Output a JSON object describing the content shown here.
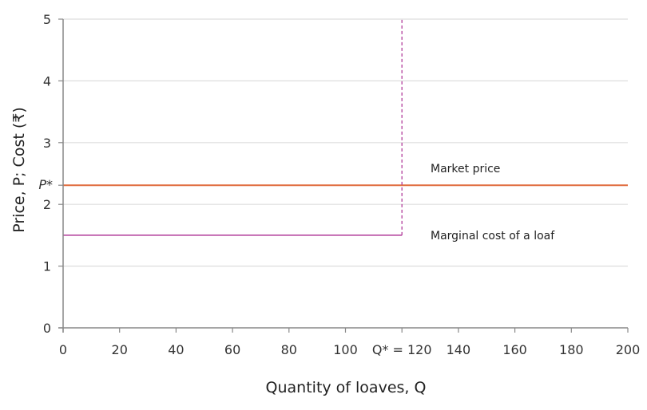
{
  "chart_data": {
    "type": "line",
    "title": "",
    "xlabel": "Quantity of loaves, Q",
    "ylabel": "Price, P; Cost (₹)",
    "xlim": [
      0,
      200
    ],
    "ylim": [
      0,
      5
    ],
    "grid": "horizontal",
    "x_ticks": [
      0,
      20,
      40,
      60,
      80,
      100,
      120,
      140,
      160,
      180,
      200
    ],
    "x_tick_labels": [
      "0",
      "20",
      "40",
      "60",
      "80",
      "100",
      "Q* = 120",
      "140",
      "160",
      "180",
      "200"
    ],
    "y_ticks": [
      0,
      1,
      2,
      3,
      4,
      5
    ],
    "y_tick_labels": [
      "0",
      "1",
      "2",
      "3",
      "4",
      "5"
    ],
    "extra_y_label": {
      "text": "P*",
      "value": 2.31
    },
    "series": [
      {
        "name": "Market price",
        "color": "#e06b3d",
        "style": "solid",
        "x": [
          0,
          200
        ],
        "y": [
          2.31,
          2.31
        ]
      },
      {
        "name": "Marginal cost of a loaf",
        "color": "#b13c9a",
        "style": "solid",
        "x": [
          0,
          120
        ],
        "y": [
          1.5,
          1.5
        ]
      },
      {
        "name": "Q* capacity line",
        "color": "#b13c9a",
        "style": "dashed",
        "x": [
          120,
          120
        ],
        "y": [
          1.5,
          5
        ]
      }
    ],
    "annotations": [
      {
        "text": "Market price",
        "x": 130,
        "y": 2.6
      },
      {
        "text": "Marginal cost of a loaf",
        "x": 130,
        "y": 1.5
      }
    ]
  },
  "labels": {
    "xlabel": "Quantity of loaves, Q",
    "ylabel": "Price, P; Cost (₹)",
    "market_price": "Market price",
    "marginal_cost": "Marginal cost of a loaf",
    "p_star": "P*",
    "q_star": "Q* = 120"
  },
  "colors": {
    "market_price": "#e06b3d",
    "marginal_cost": "#b13c9a",
    "axis": "#888888",
    "grid": "#dddddd"
  }
}
